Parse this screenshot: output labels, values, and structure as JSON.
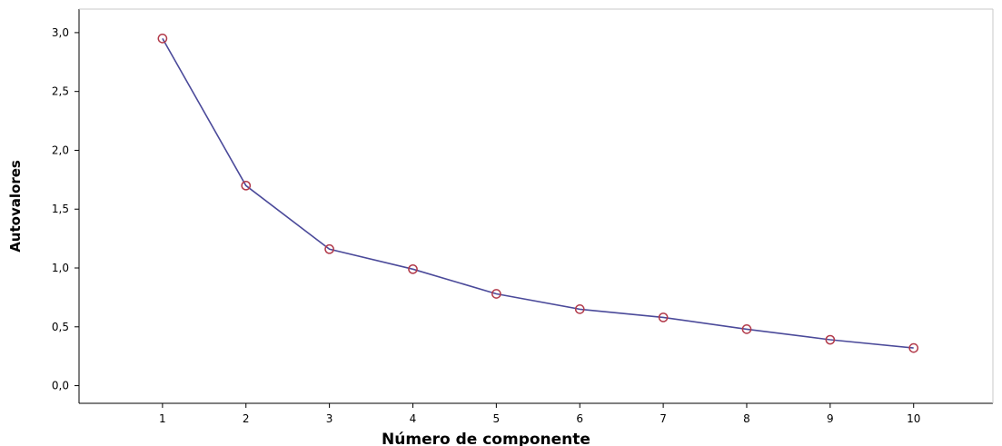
{
  "chart_data": {
    "type": "line",
    "title": "",
    "xlabel": "Número de componente",
    "ylabel": "Autovalores",
    "x": [
      1,
      2,
      3,
      4,
      5,
      6,
      7,
      8,
      9,
      10
    ],
    "y": [
      2.95,
      1.7,
      1.16,
      0.99,
      0.78,
      0.65,
      0.58,
      0.48,
      0.39,
      0.32
    ],
    "x_tick_labels": [
      "1",
      "2",
      "3",
      "4",
      "5",
      "6",
      "7",
      "8",
      "9",
      "10"
    ],
    "y_ticks": [
      0.0,
      0.5,
      1.0,
      1.5,
      2.0,
      2.5,
      3.0
    ],
    "y_tick_labels": [
      "0,0",
      "0,5",
      "1,0",
      "1,5",
      "2,0",
      "2,5",
      "3,0"
    ],
    "xlim": [
      0,
      10.95
    ],
    "ylim": [
      -0.15,
      3.2
    ],
    "grid": false,
    "legend": "none",
    "line_color": "#4b4a9a",
    "marker_color": "#b23a4a",
    "marker": "open-circle"
  }
}
